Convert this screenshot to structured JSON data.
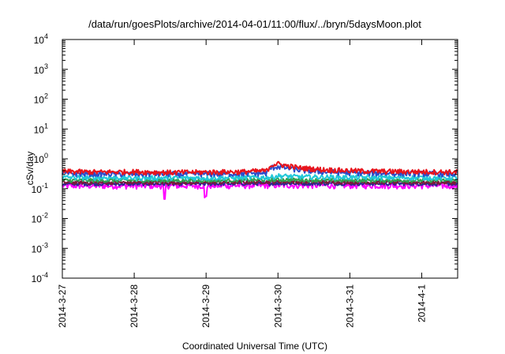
{
  "chart_data": {
    "type": "line",
    "title": "/data/run/goesPlots/archive/2014-04-01/11:00/flux/../bryn/5daysMoon.plot",
    "xlabel": "Coordinated Universal Time (UTC)",
    "ylabel": "cSv/day",
    "yscale": "log",
    "ylim": [
      0.0001,
      10000
    ],
    "xlim_days": [
      0,
      5.5
    ],
    "grid": false,
    "legend": "none",
    "y_ticks": [
      {
        "base": "10",
        "exp": "-4",
        "value": 0.0001
      },
      {
        "base": "10",
        "exp": "-3",
        "value": 0.001
      },
      {
        "base": "10",
        "exp": "-2",
        "value": 0.01
      },
      {
        "base": "10",
        "exp": "-1",
        "value": 0.1
      },
      {
        "base": "10",
        "exp": "0",
        "value": 1
      },
      {
        "base": "10",
        "exp": "1",
        "value": 10
      },
      {
        "base": "10",
        "exp": "2",
        "value": 100
      },
      {
        "base": "10",
        "exp": "3",
        "value": 1000
      },
      {
        "base": "10",
        "exp": "4",
        "value": 10000
      }
    ],
    "x_ticks": [
      {
        "label": "2014-3-27",
        "day": 0
      },
      {
        "label": "2014-3-28",
        "day": 1
      },
      {
        "label": "2014-3-29",
        "day": 2
      },
      {
        "label": "2014-3-30",
        "day": 3
      },
      {
        "label": "2014-3-31",
        "day": 4
      },
      {
        "label": "2014-4-1",
        "day": 5
      }
    ],
    "series": [
      {
        "color": "#e8141c",
        "base": 0.36,
        "spread": 0.13,
        "points": [
          [
            0,
            0.38
          ],
          [
            0.5,
            0.36
          ],
          [
            1,
            0.37
          ],
          [
            1.5,
            0.35
          ],
          [
            2,
            0.36
          ],
          [
            2.5,
            0.37
          ],
          [
            2.85,
            0.4
          ],
          [
            2.9,
            0.62
          ],
          [
            3.0,
            0.68
          ],
          [
            3.1,
            0.6
          ],
          [
            3.3,
            0.5
          ],
          [
            3.6,
            0.44
          ],
          [
            4.0,
            0.4
          ],
          [
            4.5,
            0.38
          ],
          [
            5.0,
            0.37
          ],
          [
            5.5,
            0.36
          ]
        ]
      },
      {
        "color": "#2a4dcc",
        "base": 0.32,
        "spread": 0.12,
        "points": [
          [
            0,
            0.32
          ],
          [
            1,
            0.31
          ],
          [
            2,
            0.31
          ],
          [
            2.85,
            0.33
          ],
          [
            2.9,
            0.5
          ],
          [
            3.0,
            0.55
          ],
          [
            3.3,
            0.42
          ],
          [
            3.6,
            0.37
          ],
          [
            4.0,
            0.34
          ],
          [
            5.0,
            0.32
          ],
          [
            5.5,
            0.31
          ]
        ]
      },
      {
        "color": "#22c8d8",
        "base": 0.24,
        "spread": 0.08,
        "points": [
          [
            0,
            0.24
          ],
          [
            1,
            0.23
          ],
          [
            2,
            0.23
          ],
          [
            2.9,
            0.24
          ],
          [
            3.0,
            0.27
          ],
          [
            3.3,
            0.25
          ],
          [
            4.0,
            0.24
          ],
          [
            5.5,
            0.23
          ]
        ]
      },
      {
        "color": "#30a050",
        "base": 0.19,
        "spread": 0.05,
        "points": [
          [
            0,
            0.19
          ],
          [
            2,
            0.19
          ],
          [
            3.0,
            0.2
          ],
          [
            4.0,
            0.19
          ],
          [
            5.5,
            0.19
          ]
        ]
      },
      {
        "color": "#7a1a3a",
        "base": 0.16,
        "spread": 0.04,
        "points": [
          [
            0,
            0.16
          ],
          [
            2,
            0.16
          ],
          [
            3.0,
            0.17
          ],
          [
            5.5,
            0.16
          ]
        ]
      },
      {
        "color": "#2a2a90",
        "base": 0.145,
        "spread": 0.035,
        "points": [
          [
            0,
            0.145
          ],
          [
            2,
            0.145
          ],
          [
            3.0,
            0.15
          ],
          [
            5.5,
            0.145
          ]
        ]
      },
      {
        "color": "#ff00ff",
        "base": 0.125,
        "spread": 0.05,
        "points": [
          [
            0,
            0.125
          ],
          [
            2,
            0.125
          ],
          [
            3.0,
            0.13
          ],
          [
            5.5,
            0.125
          ]
        ],
        "dips": [
          {
            "day": 1.42,
            "value": 0.045
          },
          {
            "day": 1.98,
            "value": 0.05
          },
          {
            "day": 2.0,
            "value": 0.055
          }
        ]
      }
    ]
  }
}
